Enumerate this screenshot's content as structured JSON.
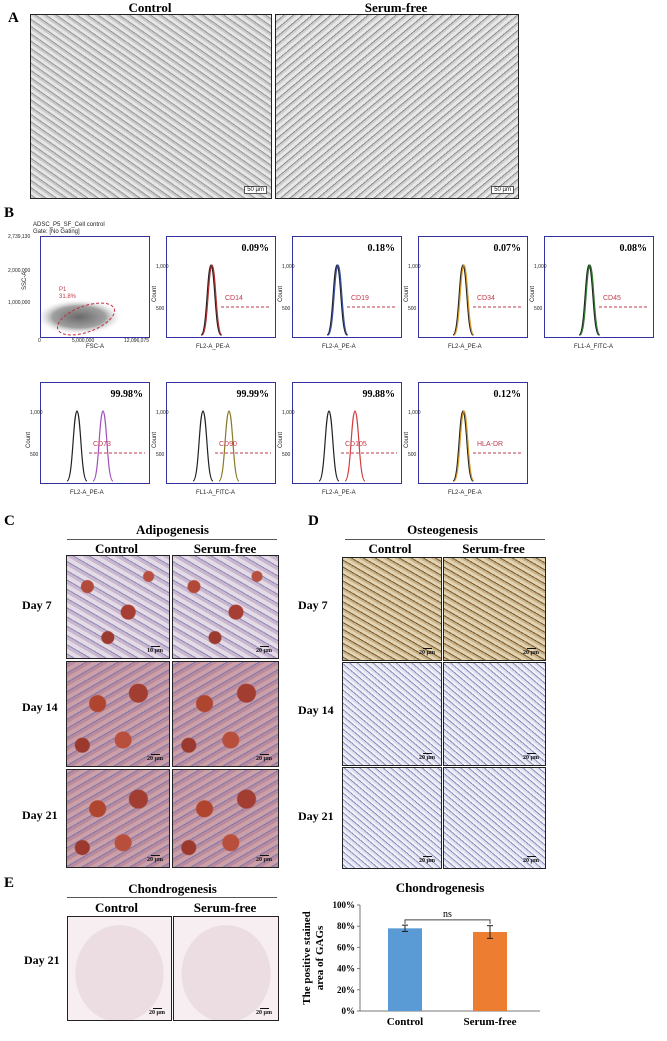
{
  "panels": {
    "A": "A",
    "B": "B",
    "C": "C",
    "D": "D",
    "E": "E"
  },
  "A": {
    "control": "Control",
    "serum_free": "Serum-free",
    "scale_left": "50 µm",
    "scale_right": "50 µm"
  },
  "B": {
    "scatter": {
      "title": "ADSC_P5_SF_Cell control",
      "gate": "Gate: [No Gating]",
      "gate_label": "P1",
      "gate_pct": "31.8%",
      "ylabel": "SSC-A",
      "xlabel": "FSC-A",
      "yticks": [
        "1,000,000",
        "2,000,000",
        "2,739,130"
      ],
      "xticks": [
        "0",
        "5,000,000",
        "12,096,075"
      ]
    },
    "histograms": [
      {
        "marker": "CD14",
        "pct": "0.09%",
        "xlabel": "FL2-A_PE-A",
        "color": "#b03030",
        "shift": false
      },
      {
        "marker": "CD19",
        "pct": "0.18%",
        "xlabel": "FL2-A_PE-A",
        "color": "#3a4fa0",
        "shift": false
      },
      {
        "marker": "CD34",
        "pct": "0.07%",
        "xlabel": "FL2-A_PE-A",
        "color": "#d59a2a",
        "shift": false
      },
      {
        "marker": "CD45",
        "pct": "0.08%",
        "xlabel": "FL1-A_FITC-A",
        "color": "#2f7a2f",
        "shift": false
      },
      {
        "marker": "CD73",
        "pct": "99.98%",
        "xlabel": "FL2-A_PE-A",
        "color": "#a050c0",
        "shift": true
      },
      {
        "marker": "CD90",
        "pct": "99.99%",
        "xlabel": "FL1-A_FITC-A",
        "color": "#8a7a2a",
        "shift": true
      },
      {
        "marker": "CD105",
        "pct": "99.88%",
        "xlabel": "FL2-A_PE-A",
        "color": "#d04040",
        "shift": true
      },
      {
        "marker": "HLA-DR",
        "pct": "0.12%",
        "xlabel": "FL2-A_PE-A",
        "color": "#d59a2a",
        "shift": false
      }
    ],
    "ylabel": "Count",
    "yticks": [
      "500",
      "1,000"
    ]
  },
  "C": {
    "title": "Adipogenesis",
    "control": "Control",
    "serum_free": "Serum-free",
    "day7": "Day 7",
    "day14": "Day 14",
    "day21": "Day 21",
    "scale": "20 µm",
    "scale_top": "10 µm"
  },
  "D": {
    "title": "Osteogenesis",
    "control": "Control",
    "serum_free": "Serum-free",
    "day7": "Day 7",
    "day14": "Day 14",
    "day21": "Day 21",
    "scale": "20 µm"
  },
  "E": {
    "title": "Chondrogenesis",
    "control": "Control",
    "serum_free": "Serum-free",
    "day21": "Day 21",
    "scale": "20 µm"
  },
  "chart_data": {
    "type": "bar",
    "title": "Chondrogenesis",
    "categories": [
      "Control",
      "Serum-free"
    ],
    "values": [
      0.78,
      0.745
    ],
    "errors": [
      0.03,
      0.06
    ],
    "colors": [
      "#5b9bd5",
      "#ed7d31"
    ],
    "ylabel": "The positive stained area of GAGs",
    "ylim": [
      0,
      1
    ],
    "yticks": [
      "0%",
      "20%",
      "40%",
      "60%",
      "80%",
      "100%"
    ],
    "annotation": "ns"
  }
}
